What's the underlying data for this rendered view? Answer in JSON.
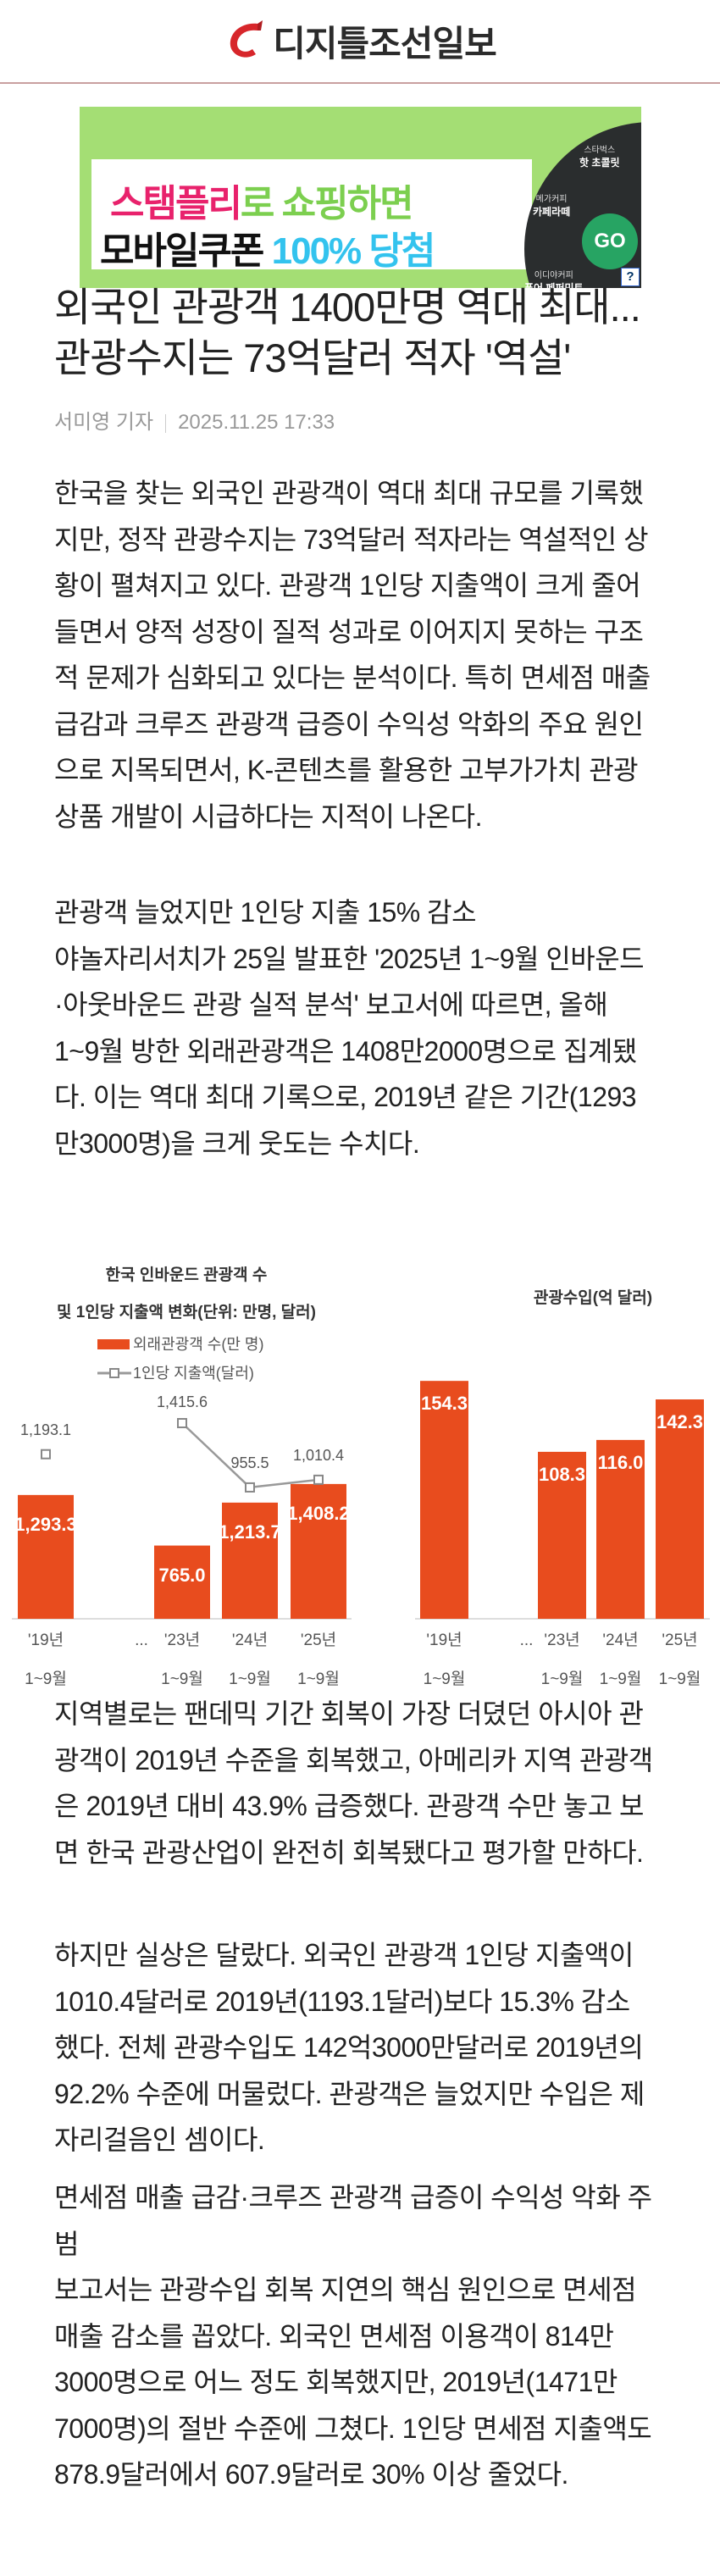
{
  "header": {
    "logo_text": "디지틀조선일보",
    "accent": "#d7262b"
  },
  "ad": {
    "line1_a": "스탬플리",
    "line1_b": "로 쇼핑하면",
    "line2_a": "모바일쿠폰 ",
    "line2_b": "100% 당첨",
    "go": "GO",
    "items": [
      {
        "brand": "스타벅스",
        "name": "핫 초콜릿"
      },
      {
        "brand": "메가커피",
        "name": "카페라떼"
      },
      {
        "brand": "이디야커피",
        "name": "퓨어 페퍼민트"
      }
    ],
    "help": "?"
  },
  "article": {
    "title_lines": [
      "외국인 관광객 1400만명 역대 최대...",
      "관광수지는 73억달러 적자 '역설'"
    ],
    "author": "서미영 기자",
    "date": "2025.11.25 17:33",
    "p1": [
      "한국을 찾는 외국인 관광객이 역대 최대 규모를 기록했",
      "지만, 정작 관광수지는 73억달러 적자라는 역설적인 상",
      "황이 펼쳐지고 있다. 관광객 1인당 지출액이 크게 줄어",
      "들면서 양적 성장이 질적 성과로 이어지지 못하는 구조",
      "적 문제가 심화되고 있다는 분석이다. 특히 면세점 매출",
      "급감과 크루즈 관광객 급증이 수익성 악화의 주요 원인",
      "으로 지목되면서, K-콘텐츠를 활용한 고부가가치 관광",
      "상품 개발이 시급하다는 지적이 나온다."
    ],
    "p2": [
      "관광객 늘었지만 1인당 지출 15% 감소",
      "야놀자리서치가 25일 발표한 '2025년 1~9월 인바운드",
      "·아웃바운드 관광 실적 분석' 보고서에 따르면, 올해",
      "1~9월 방한 외래관광객은 1408만2000명으로 집계됐",
      "다. 이는 역대 최대 기록으로, 2019년 같은 기간(1293",
      "만3000명)을 크게 웃도는 수치다."
    ],
    "p3": [
      "지역별로는 팬데믹 기간 회복이 가장 더뎠던 아시아 관",
      "광객이 2019년 수준을 회복했고, 아메리카 지역 관광객",
      "은 2019년 대비 43.9% 급증했다. 관광객 수만 놓고 보",
      "면 한국 관광산업이 완전히 회복됐다고 평가할 만하다."
    ],
    "p4": [
      "하지만 실상은 달랐다. 외국인 관광객 1인당 지출액이",
      "1010.4달러로 2019년(1193.1달러)보다 15.3% 감소",
      "했다. 전체 관광수입도 142억3000만달러로 2019년의",
      "92.2% 수준에 머물렀다. 관광객은 늘었지만 수입은 제",
      "자리걸음인 셈이다."
    ],
    "p5": [
      "면세점 매출 급감·크루즈 관광객 급증이 수익성 악화 주",
      "범",
      "보고서는 관광수입 회복 지연의 핵심 원인으로 면세점",
      "매출 감소를 꼽았다. 외국인 면세점 이용객이 814만",
      "3000명으로 어느 정도 회복했지만, 2019년(1471만",
      "7000명)의 절반 수준에 그쳤다. 1인당 면세점 지출액도",
      "878.9달러에서 607.9달러로 30% 이상 줄었다."
    ]
  },
  "chart_data": [
    {
      "type": "bar",
      "title_lines": [
        "한국 인바운드 관광객 수",
        "및 1인당 지출액 변화(단위: 만명, 달러)"
      ],
      "categories": [
        [
          "'19년",
          "1~9월"
        ],
        [
          "...",
          ""
        ],
        [
          "'23년",
          "1~9월"
        ],
        [
          "'24년",
          "1~9월"
        ],
        [
          "'25년",
          "1~9월"
        ]
      ],
      "series": [
        {
          "name": "외래관광객 수(만 명)",
          "type": "bar",
          "values": [
            1293.3,
            null,
            765.0,
            1213.7,
            1408.2
          ],
          "labels": [
            "1,293.3",
            null,
            "765.0",
            "1,213.7",
            "1,408.2"
          ],
          "color": "#e84c1e"
        },
        {
          "name": "1인당 지출액(달러)",
          "type": "line",
          "values": [
            1193.1,
            null,
            1415.6,
            955.5,
            1010.4
          ],
          "labels": [
            "1,193.1",
            null,
            "1,415.6",
            "955.5",
            "1,010.4"
          ],
          "color": "#999999"
        }
      ],
      "legend": "top-left"
    },
    {
      "type": "bar",
      "title": "관광수입(억 달러)",
      "categories": [
        [
          "'19년",
          "1~9월"
        ],
        [
          "...",
          ""
        ],
        [
          "'23년",
          "1~9월"
        ],
        [
          "'24년",
          "1~9월"
        ],
        [
          "'25년",
          "1~9월"
        ]
      ],
      "values": [
        154.3,
        null,
        108.3,
        116.0,
        142.3
      ],
      "labels": [
        "154.3",
        null,
        "108.3",
        "116.0",
        "142.3"
      ],
      "color": "#e84c1e"
    }
  ]
}
